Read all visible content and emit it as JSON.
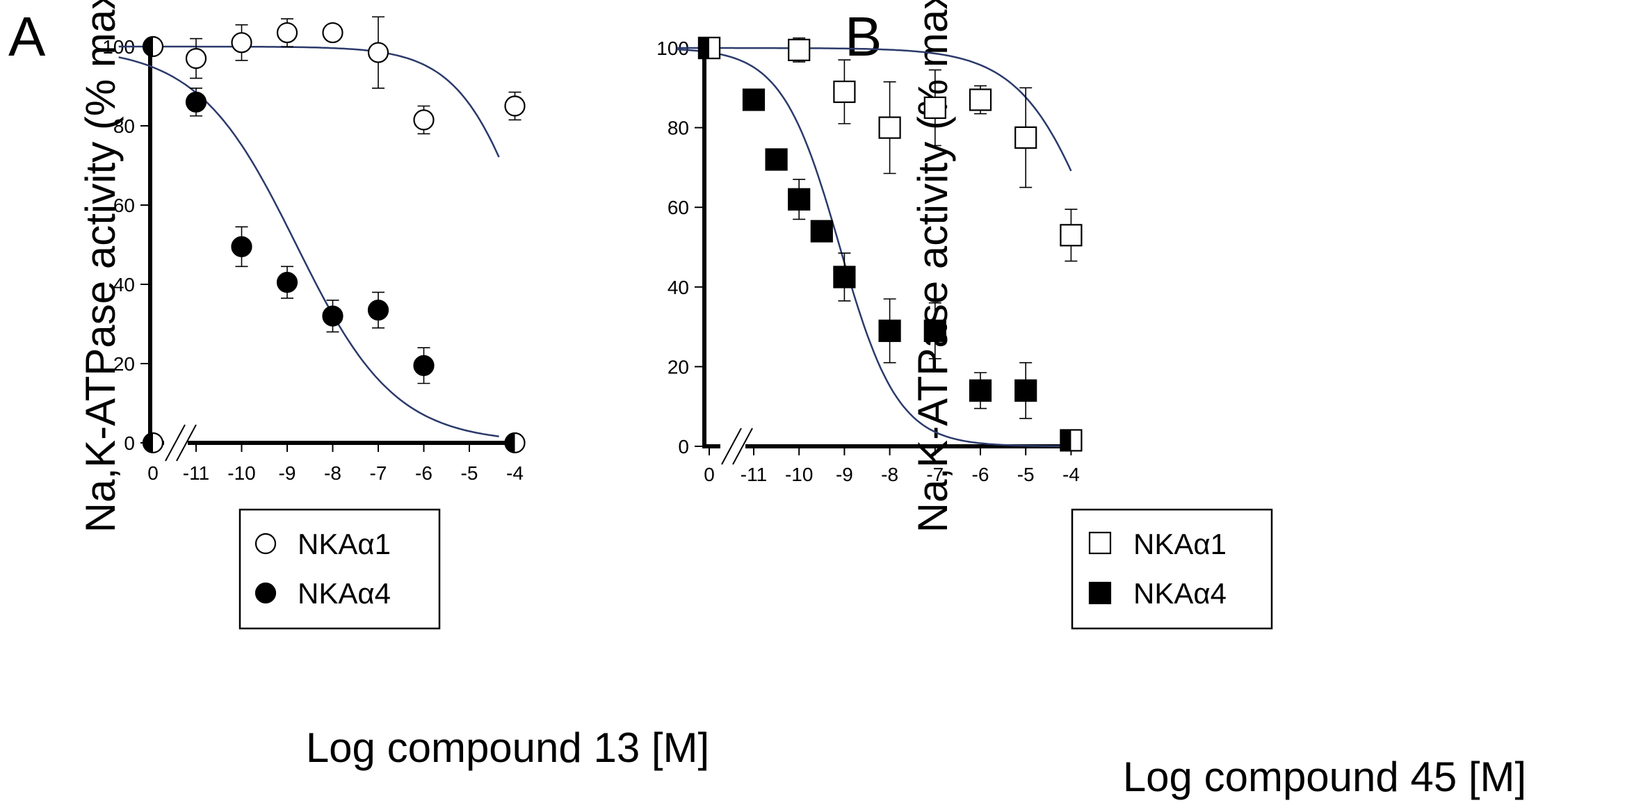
{
  "colors": {
    "axis": "#000000",
    "fit_line": "#2b3a6b",
    "open_marker": "#ffffff",
    "filled_marker": "#000000"
  },
  "chart_data": [
    {
      "panel": "A",
      "type": "scatter",
      "xlabel": "Log compound 13 [M]",
      "ylabel": "Na,K-ATPase activity (% max)",
      "xticks": [
        "0",
        "-11",
        "-10",
        "-9",
        "-8",
        "-7",
        "-6",
        "-5",
        "-4"
      ],
      "yticks": [
        "0",
        "20",
        "40",
        "60",
        "80",
        "100"
      ],
      "ylim": [
        0,
        100
      ],
      "axis_break": "between 0 and -11",
      "legend": {
        "position": "bottom-left",
        "entries": [
          "NKAα1",
          "NKAα4"
        ]
      },
      "series": [
        {
          "name": "NKAα1",
          "marker": "open-circle",
          "points": [
            {
              "x": "0",
              "y": 100,
              "err": 0
            },
            {
              "x": "-11",
              "y": 97,
              "err": 5
            },
            {
              "x": "-10",
              "y": 101,
              "err": 4.5
            },
            {
              "x": "-9",
              "y": 103.5,
              "err": 3.5
            },
            {
              "x": "-8",
              "y": 103.5,
              "err": 0
            },
            {
              "x": "-7",
              "y": 98.5,
              "err": 9
            },
            {
              "x": "-6",
              "y": 81.5,
              "err": 3.5
            },
            {
              "x": "-4",
              "y": 85,
              "err": 3.5
            }
          ],
          "fit": {
            "top": 100,
            "bottom": 0,
            "logIC50": -3.6,
            "hill": 0.55,
            "x_range": [
              -12.7,
              -4.35
            ]
          }
        },
        {
          "name": "NKAα4",
          "marker": "filled-circle",
          "points": [
            {
              "x": "0",
              "y": 0,
              "err": 0
            },
            {
              "x": "-11",
              "y": 86,
              "err": 3.5
            },
            {
              "x": "-10",
              "y": 49.5,
              "err": 5
            },
            {
              "x": "-9",
              "y": 40.5,
              "err": 4
            },
            {
              "x": "-8",
              "y": 32,
              "err": 4
            },
            {
              "x": "-7",
              "y": 33.5,
              "err": 4.5
            },
            {
              "x": "-6",
              "y": 19.5,
              "err": 4.5
            },
            {
              "x": "-4",
              "y": 0,
              "err": 0
            }
          ],
          "fit": {
            "top": 100,
            "bottom": 0,
            "logIC50": -8.8,
            "hill": 0.4,
            "x_range": [
              -12.7,
              -4.35
            ]
          }
        }
      ]
    },
    {
      "panel": "B",
      "type": "scatter",
      "xlabel": "Log compound 45 [M]",
      "ylabel": "Na,K-ATPase activity (% max)",
      "xticks": [
        "0",
        "-11",
        "-10",
        "-9",
        "-8",
        "-7",
        "-6",
        "-5",
        "-4"
      ],
      "yticks": [
        "0",
        "20",
        "40",
        "60",
        "80",
        "100"
      ],
      "ylim": [
        0,
        100
      ],
      "axis_break": "between 0 and -11",
      "legend": {
        "position": "bottom-left",
        "entries": [
          "NKAα1",
          "NKAα4"
        ]
      },
      "series": [
        {
          "name": "NKAα1",
          "marker": "open-square",
          "points": [
            {
              "x": "0",
              "y": 100,
              "err": 0
            },
            {
              "x": "-10",
              "y": 99.5,
              "err": 3
            },
            {
              "x": "-9",
              "y": 89,
              "err": 8
            },
            {
              "x": "-8",
              "y": 80,
              "err": 11.5
            },
            {
              "x": "-7",
              "y": 85,
              "err": 9.5
            },
            {
              "x": "-6",
              "y": 87,
              "err": 3.5
            },
            {
              "x": "-5",
              "y": 77.5,
              "err": 12.5
            },
            {
              "x": "-4",
              "y": 53,
              "err": 6.5
            }
          ],
          "fit": {
            "top": 100,
            "bottom": 0,
            "logIC50": -3.3,
            "hill": 0.5,
            "x_range": [
              -12.7,
              -4.0
            ]
          }
        },
        {
          "name": "NKAα4",
          "marker": "filled-square",
          "points": [
            {
              "x": "0",
              "y": 100,
              "err": 0
            },
            {
              "x": "-11",
              "y": 87,
              "err": 2
            },
            {
              "x": "-10.5",
              "y": 72,
              "err": 2.5
            },
            {
              "x": "-10",
              "y": 62,
              "err": 5
            },
            {
              "x": "-9.5",
              "y": 54,
              "err": 0
            },
            {
              "x": "-9",
              "y": 42.5,
              "err": 6
            },
            {
              "x": "-8",
              "y": 29,
              "err": 8
            },
            {
              "x": "-7",
              "y": 29,
              "err": 7
            },
            {
              "x": "-6",
              "y": 14,
              "err": 4.5
            },
            {
              "x": "-5",
              "y": 14,
              "err": 7
            },
            {
              "x": "-4",
              "y": 1.5,
              "err": 0
            }
          ],
          "fit": {
            "top": 100,
            "bottom": 0,
            "logIC50": -9.1,
            "hill": 0.68,
            "x_range": [
              -12.7,
              -4.0
            ]
          }
        }
      ]
    }
  ]
}
